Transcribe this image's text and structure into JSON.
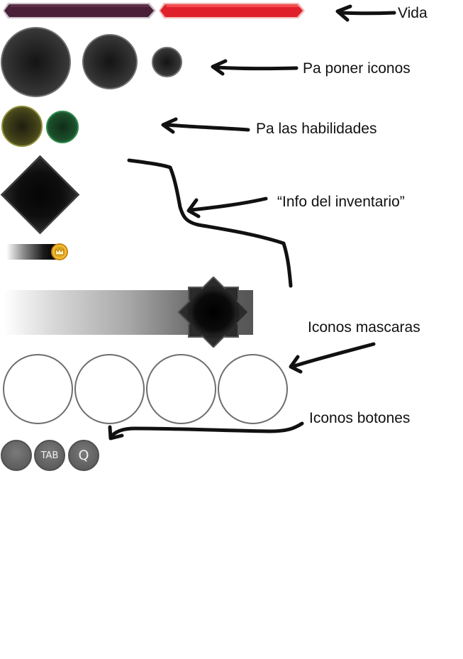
{
  "annotations": {
    "vida": "Vida",
    "iconos": "Pa poner iconos",
    "habilidades": "Pa las habilidades",
    "inventario": "“Info del inventario”",
    "mascaras": "Iconos mascaras",
    "botones": "Iconos botones"
  },
  "button_icons": {
    "tab": "TAB",
    "q": "Q"
  },
  "colors": {
    "health_bar_empty": "#4a2038",
    "health_bar_full": "#e0202a",
    "skill_yellow": "#5a5a22",
    "skill_green": "#1f6a35",
    "coin": "#e0a81c"
  },
  "icons": {
    "arrows": "hand-drawn-arrow",
    "coin": "crown-coin-icon"
  }
}
